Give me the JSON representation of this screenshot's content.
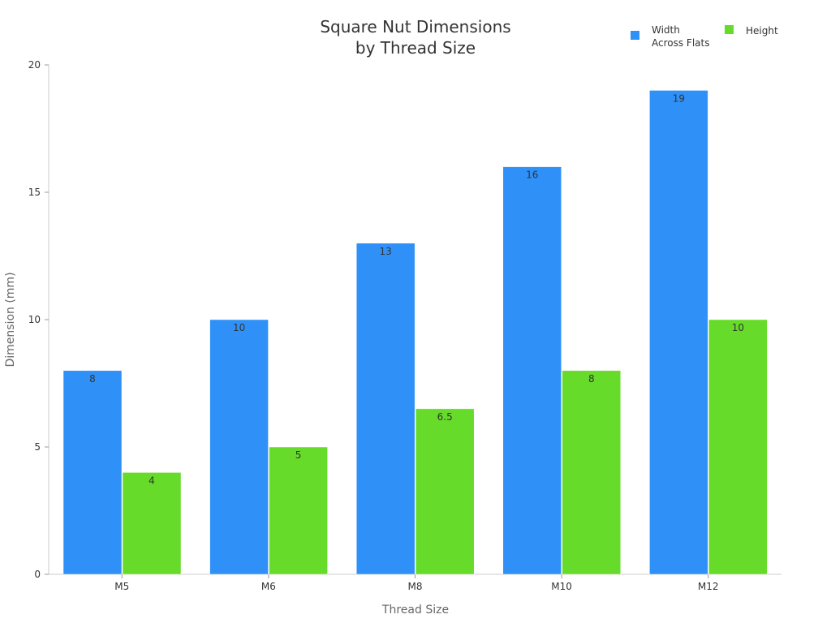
{
  "chart_data": {
    "type": "bar",
    "title_lines": [
      "Square Nut Dimensions",
      "by Thread Size"
    ],
    "xlabel": "Thread Size",
    "ylabel": "Dimension (mm)",
    "categories": [
      "M5",
      "M6",
      "M8",
      "M10",
      "M12"
    ],
    "series": [
      {
        "name": "Width Across Flats",
        "name_lines": [
          "Width",
          "Across Flats"
        ],
        "color": "#2f91f8",
        "values": [
          8,
          10,
          13,
          16,
          19
        ],
        "labels": [
          "8",
          "10",
          "13",
          "16",
          "19"
        ]
      },
      {
        "name": "Height",
        "name_lines": [
          "Height"
        ],
        "color": "#66db29",
        "values": [
          4,
          5,
          6.5,
          8,
          10
        ],
        "labels": [
          "4",
          "5",
          "6.5",
          "8",
          "10"
        ]
      }
    ],
    "ylim": [
      0,
      20
    ],
    "yticks": [
      "0",
      "5",
      "10",
      "15",
      "20"
    ],
    "grid": false,
    "legend_position": "top-right"
  }
}
